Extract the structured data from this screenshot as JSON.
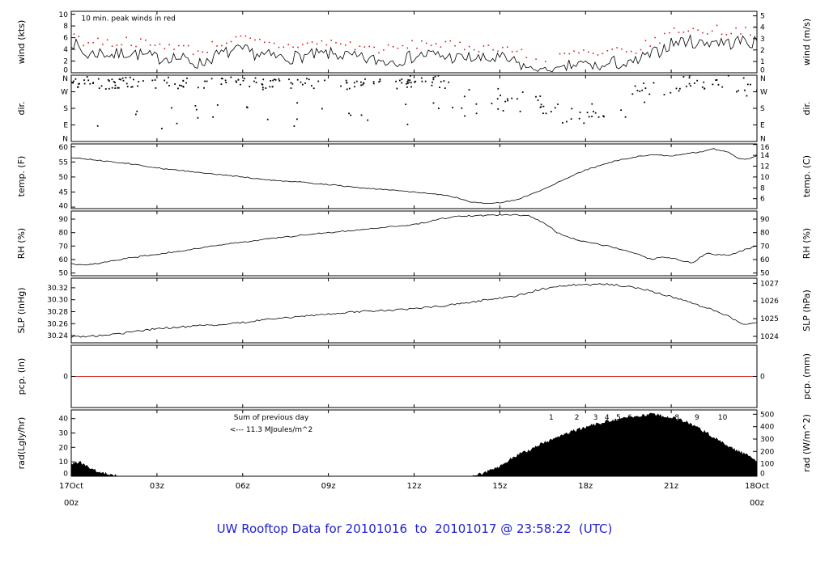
{
  "chart_data": {
    "type": "line",
    "title": "UW Rooftop Data for 20101016  to  20101017 @ 23:58:22  (UTC)",
    "colors": {
      "line": "#000000",
      "peak_red": "#cc2020",
      "precip_red": "#cc2020",
      "annotation_purple": "#a020f0",
      "title_blue": "#2222cc",
      "axis_end_red": "#cc2020"
    },
    "x_axis": {
      "min": 0,
      "max": 24,
      "major_ticks": [
        0,
        3,
        6,
        9,
        12,
        15,
        18,
        21,
        24
      ],
      "tick_labels": [
        {
          "h": 0,
          "lines": [
            "17Oct",
            "00z"
          ],
          "color": "#cc2020"
        },
        {
          "h": 3,
          "lines": [
            "03z"
          ],
          "color": "#000000"
        },
        {
          "h": 6,
          "lines": [
            "06z"
          ],
          "color": "#000000"
        },
        {
          "h": 9,
          "lines": [
            "09z"
          ],
          "color": "#000000"
        },
        {
          "h": 12,
          "lines": [
            "12z"
          ],
          "color": "#000000"
        },
        {
          "h": 15,
          "lines": [
            "15z"
          ],
          "color": "#000000"
        },
        {
          "h": 18,
          "lines": [
            "18z"
          ],
          "color": "#000000"
        },
        {
          "h": 21,
          "lines": [
            "21z"
          ],
          "color": "#000000"
        },
        {
          "h": 24,
          "lines": [
            "18Oct",
            "00z"
          ],
          "color": "#cc2020"
        }
      ]
    },
    "panels": [
      {
        "id": "wind",
        "left_label": "wind (kts)",
        "right_label": "wind (m/s)",
        "ylim": [
          0,
          10.5
        ],
        "left_ticks": [
          [
            0,
            "0"
          ],
          [
            2,
            "2"
          ],
          [
            4,
            "4"
          ],
          [
            6,
            "6"
          ],
          [
            8,
            "8"
          ],
          [
            10,
            "10"
          ]
        ],
        "right_ticks": [
          [
            0,
            "0"
          ],
          [
            1.94,
            "1"
          ],
          [
            3.89,
            "2"
          ],
          [
            5.83,
            "3"
          ],
          [
            7.78,
            "4"
          ],
          [
            9.72,
            "5"
          ]
        ],
        "series_type": "noisy_line",
        "noise_amp": 1.15,
        "peak_offset": 1.2,
        "peak_color": "#cc2020",
        "annotation": {
          "text": "10 min. peak winds in red",
          "color": "#cc2020",
          "h": 0.35,
          "vfrac": 0.9
        },
        "half_hour_means": [
          5.5,
          3.0,
          3.5,
          3.0,
          3.5,
          3.0,
          2.5,
          2.8,
          2.2,
          1.5,
          2.8,
          3.5,
          3.8,
          3.2,
          2.8,
          2.5,
          2.8,
          3.0,
          3.2,
          3.0,
          2.5,
          2.2,
          2.0,
          2.2,
          2.8,
          3.2,
          2.8,
          2.5,
          2.5,
          2.2,
          2.5,
          1.8,
          0.8,
          0.5,
          0.6,
          1.2,
          1.5,
          0.8,
          1.8,
          1.2,
          2.5,
          3.5,
          5.0,
          5.5,
          5.0,
          5.5,
          5.0,
          5.5,
          5.0
        ]
      },
      {
        "id": "dir",
        "left_label": "dir.",
        "right_label": "dir.",
        "ylim": [
          0,
          360
        ],
        "left_ticks": [
          [
            360,
            "N"
          ],
          [
            270,
            "W"
          ],
          [
            180,
            "S"
          ],
          [
            90,
            "E"
          ],
          [
            0,
            "N"
          ]
        ],
        "right_ticks": [
          [
            360,
            "N"
          ],
          [
            270,
            "W"
          ],
          [
            180,
            "S"
          ],
          [
            90,
            "E"
          ],
          [
            0,
            "N"
          ]
        ],
        "series_type": "scatter",
        "clusters": [
          {
            "from": 0,
            "to": 13.5,
            "mean": 330,
            "spread": 25,
            "per_hour": 9
          },
          {
            "from": 0,
            "to": 13.5,
            "mean": 295,
            "spread": 12,
            "per_hour": 3
          },
          {
            "from": 13.5,
            "to": 16.5,
            "mean": 210,
            "spread": 70,
            "per_hour": 8
          },
          {
            "from": 16.5,
            "to": 19.5,
            "mean": 150,
            "spread": 60,
            "per_hour": 8
          },
          {
            "from": 19.5,
            "to": 24,
            "mean": 300,
            "spread": 60,
            "per_hour": 9
          }
        ],
        "outliers": {
          "from": 0.5,
          "to": 14,
          "vmin": 70,
          "vmax": 210,
          "count": 28
        }
      },
      {
        "id": "temp",
        "left_label": "temp. (F)",
        "right_label": "temp. (C)",
        "ylim": [
          39.5,
          61.0
        ],
        "left_ticks": [
          [
            40,
            "40"
          ],
          [
            45,
            "45"
          ],
          [
            50,
            "50"
          ],
          [
            55,
            "55"
          ],
          [
            60,
            "60"
          ]
        ],
        "right_ticks": [
          [
            42.8,
            "6"
          ],
          [
            46.4,
            "8"
          ],
          [
            50,
            "10"
          ],
          [
            53.6,
            "12"
          ],
          [
            57.2,
            "14"
          ],
          [
            60.8,
            "16"
          ]
        ],
        "series_type": "breakpoint_line",
        "noise_amp": 0.18,
        "breakpoints": [
          [
            0,
            56.5
          ],
          [
            0.5,
            56
          ],
          [
            1,
            55.5
          ],
          [
            2,
            54.5
          ],
          [
            3,
            53
          ],
          [
            4,
            52
          ],
          [
            5,
            51
          ],
          [
            6,
            50
          ],
          [
            7,
            49
          ],
          [
            8,
            48.3
          ],
          [
            9,
            47.5
          ],
          [
            10,
            46.5
          ],
          [
            11,
            45.8
          ],
          [
            12,
            45
          ],
          [
            13,
            44
          ],
          [
            13.5,
            43.2
          ],
          [
            14,
            41.6
          ],
          [
            14.5,
            41.2
          ],
          [
            15,
            41.5
          ],
          [
            15.5,
            42.3
          ],
          [
            16,
            43.8
          ],
          [
            16.5,
            45.8
          ],
          [
            17,
            48
          ],
          [
            17.5,
            50.3
          ],
          [
            18,
            52.3
          ],
          [
            18.5,
            53.8
          ],
          [
            19,
            55.2
          ],
          [
            19.5,
            56.3
          ],
          [
            20,
            57
          ],
          [
            20.5,
            57.4
          ],
          [
            21,
            57
          ],
          [
            21.5,
            57.8
          ],
          [
            22,
            58.3
          ],
          [
            22.5,
            59.3
          ],
          [
            23,
            58.2
          ],
          [
            23.3,
            56.5
          ],
          [
            23.6,
            55.8
          ],
          [
            24,
            57
          ]
        ]
      },
      {
        "id": "rh",
        "left_label": "RH (%)",
        "right_label": "RH (%)",
        "ylim": [
          48,
          96
        ],
        "left_ticks": [
          [
            50,
            "50"
          ],
          [
            60,
            "60"
          ],
          [
            70,
            "70"
          ],
          [
            80,
            "80"
          ],
          [
            90,
            "90"
          ]
        ],
        "right_ticks": [
          [
            50,
            "50"
          ],
          [
            60,
            "60"
          ],
          [
            70,
            "70"
          ],
          [
            80,
            "80"
          ],
          [
            90,
            "90"
          ]
        ],
        "series_type": "breakpoint_line",
        "noise_amp": 0.5,
        "breakpoints": [
          [
            0,
            57
          ],
          [
            0.5,
            55.5
          ],
          [
            1,
            57.5
          ],
          [
            2,
            61
          ],
          [
            3,
            64
          ],
          [
            4,
            67
          ],
          [
            5,
            70
          ],
          [
            6,
            73
          ],
          [
            7,
            75.5
          ],
          [
            8,
            78
          ],
          [
            9,
            80
          ],
          [
            10,
            82
          ],
          [
            11,
            84
          ],
          [
            12,
            86
          ],
          [
            12.5,
            88
          ],
          [
            13,
            90.5
          ],
          [
            13.5,
            92
          ],
          [
            14,
            92.5
          ],
          [
            15,
            93
          ],
          [
            15.5,
            93.2
          ],
          [
            16,
            92.5
          ],
          [
            16.3,
            90
          ],
          [
            16.7,
            85
          ],
          [
            17,
            80
          ],
          [
            17.5,
            76
          ],
          [
            18,
            73
          ],
          [
            18.5,
            71
          ],
          [
            19,
            69
          ],
          [
            19.5,
            66
          ],
          [
            20,
            62.5
          ],
          [
            20.3,
            60
          ],
          [
            20.7,
            62
          ],
          [
            21,
            61
          ],
          [
            21.5,
            58.5
          ],
          [
            21.8,
            57.5
          ],
          [
            22,
            62
          ],
          [
            22.3,
            65
          ],
          [
            22.5,
            64
          ],
          [
            23,
            63
          ],
          [
            23.3,
            65
          ],
          [
            23.6,
            67.5
          ],
          [
            24,
            70
          ]
        ]
      },
      {
        "id": "slp",
        "left_label": "SLP (inHg)",
        "right_label": "SLP (hPa)",
        "ylim": [
          30.228,
          30.336
        ],
        "left_ticks": [
          [
            30.24,
            "30.24"
          ],
          [
            30.26,
            "30.26"
          ],
          [
            30.28,
            "30.28"
          ],
          [
            30.3,
            "30.30"
          ],
          [
            30.32,
            "30.32"
          ]
        ],
        "right_ticks": [
          [
            30.2388,
            "1024"
          ],
          [
            30.2684,
            "1025"
          ],
          [
            30.2979,
            "1026"
          ],
          [
            30.3274,
            "1027"
          ]
        ],
        "series_type": "breakpoint_line",
        "noise_amp": 0.0016,
        "breakpoints": [
          [
            0,
            30.238
          ],
          [
            1,
            30.24
          ],
          [
            2,
            30.245
          ],
          [
            3,
            30.252
          ],
          [
            4,
            30.255
          ],
          [
            5,
            30.258
          ],
          [
            6,
            30.262
          ],
          [
            7,
            30.268
          ],
          [
            8,
            30.272
          ],
          [
            9,
            30.276
          ],
          [
            10,
            30.28
          ],
          [
            11,
            30.282
          ],
          [
            12,
            30.285
          ],
          [
            13,
            30.29
          ],
          [
            14,
            30.295
          ],
          [
            14.5,
            30.3
          ],
          [
            15,
            30.303
          ],
          [
            15.5,
            30.306
          ],
          [
            16,
            30.312
          ],
          [
            16.5,
            30.318
          ],
          [
            17,
            30.322
          ],
          [
            17.5,
            30.325
          ],
          [
            18,
            30.324
          ],
          [
            18.5,
            30.326
          ],
          [
            19,
            30.325
          ],
          [
            19.5,
            30.322
          ],
          [
            20,
            30.318
          ],
          [
            20.5,
            30.312
          ],
          [
            21,
            30.305
          ],
          [
            21.5,
            30.298
          ],
          [
            22,
            30.29
          ],
          [
            22.5,
            30.282
          ],
          [
            23,
            30.272
          ],
          [
            23.3,
            30.264
          ],
          [
            23.6,
            30.258
          ],
          [
            24,
            30.262
          ]
        ]
      },
      {
        "id": "pcp",
        "left_label": "pcp. (in)",
        "right_label": "pcp. (mm)",
        "ylim": [
          -1,
          1
        ],
        "left_ticks": [
          [
            0,
            "0"
          ]
        ],
        "right_ticks": [
          [
            0,
            "0"
          ]
        ],
        "series_type": "flat_line",
        "value": 0,
        "line_color": "#cc2020"
      },
      {
        "id": "rad",
        "left_label": "rad(Lgly/hr)",
        "right_label": "rad (W/m^2)",
        "ylim": [
          0,
          46
        ],
        "left_ticks": [
          [
            0,
            "0"
          ],
          [
            10,
            "10"
          ],
          [
            20,
            "20"
          ],
          [
            30,
            "30"
          ],
          [
            40,
            "40"
          ]
        ],
        "right_ticks": [
          [
            0,
            "0"
          ],
          [
            8.6,
            "100"
          ],
          [
            17.2,
            "200"
          ],
          [
            25.8,
            "300"
          ],
          [
            34.4,
            "400"
          ],
          [
            43,
            "500"
          ]
        ],
        "series_type": "filled_area",
        "fill_color": "#000000",
        "noise_amp": 1.2,
        "breakpoints": [
          [
            0,
            9
          ],
          [
            0.25,
            10
          ],
          [
            0.5,
            8
          ],
          [
            0.75,
            5
          ],
          [
            1,
            3
          ],
          [
            1.25,
            1.5
          ],
          [
            1.5,
            0.5
          ],
          [
            1.75,
            0
          ],
          [
            13.9,
            0
          ],
          [
            14.25,
            1
          ],
          [
            14.5,
            3
          ],
          [
            15,
            7
          ],
          [
            15.25,
            10
          ],
          [
            15.5,
            14
          ],
          [
            16,
            18
          ],
          [
            16.5,
            23
          ],
          [
            17,
            27
          ],
          [
            17.5,
            31
          ],
          [
            18,
            34
          ],
          [
            18.5,
            37
          ],
          [
            19,
            39
          ],
          [
            19.5,
            41
          ],
          [
            20,
            42.5
          ],
          [
            20.3,
            43
          ],
          [
            20.6,
            42.5
          ],
          [
            21,
            41
          ],
          [
            21.5,
            38
          ],
          [
            22,
            33
          ],
          [
            22.5,
            27
          ],
          [
            23,
            21
          ],
          [
            23.5,
            16
          ],
          [
            24,
            11
          ]
        ],
        "markers": {
          "color": "#a020f0",
          "vfrac": 0.9,
          "items": [
            {
              "h": 16.8,
              "label": "1"
            },
            {
              "h": 17.7,
              "label": "2"
            },
            {
              "h": 18.35,
              "label": "3"
            },
            {
              "h": 18.75,
              "label": "4"
            },
            {
              "h": 19.15,
              "label": "5"
            },
            {
              "h": 19.55,
              "label": "6"
            },
            {
              "h": 20.2,
              "label": "7"
            },
            {
              "h": 21.2,
              "label": "8"
            },
            {
              "h": 21.9,
              "label": "9"
            },
            {
              "h": 22.8,
              "label": "10"
            }
          ]
        },
        "annotations": [
          {
            "text": "Sum of previous day",
            "color": "#a020f0",
            "h": 7.0,
            "vfrac": 0.9
          },
          {
            "text": "<--- 11.3 MJoules/m^2",
            "color": "#a020f0",
            "h": 7.0,
            "vfrac": 0.72
          }
        ]
      }
    ]
  }
}
